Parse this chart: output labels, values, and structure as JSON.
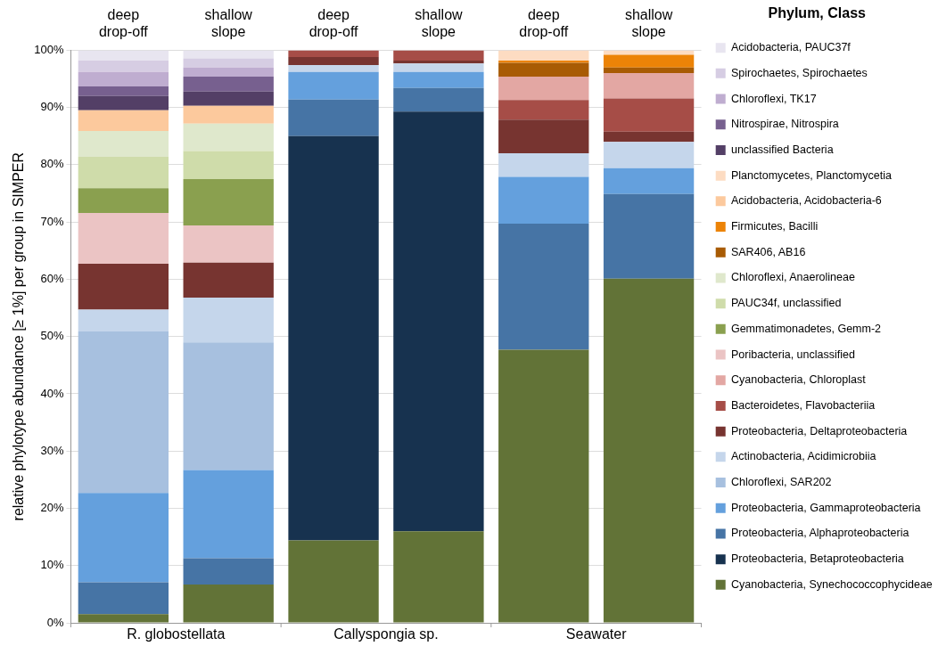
{
  "chart_data": {
    "type": "bar",
    "stacked": true,
    "ylabel": "relative phylotype abundance [≥ 1%] per group in SIMPER",
    "legend_title": "Phylum, Class",
    "legend": "right",
    "grid": "y",
    "categories": [
      "deep drop-off",
      "shallow slope",
      "deep drop-off",
      "shallow slope",
      "deep drop-off",
      "shallow slope"
    ],
    "annotations": [
      "R. globostellata",
      "Callyspongia sp.",
      "Seawater"
    ],
    "ylim": [
      0,
      100
    ],
    "yticks": [
      {
        "value": 0,
        "label": "0%"
      },
      {
        "value": 10,
        "label": "10%"
      },
      {
        "value": 20,
        "label": "20%"
      },
      {
        "value": 30,
        "label": "30%"
      },
      {
        "value": 40,
        "label": "40%"
      },
      {
        "value": 50,
        "label": "50%"
      },
      {
        "value": 60,
        "label": "60%"
      },
      {
        "value": 70,
        "label": "70%"
      },
      {
        "value": 80,
        "label": "80%"
      },
      {
        "value": 90,
        "label": "90%"
      },
      {
        "value": 100,
        "label": "100%"
      }
    ],
    "series": [
      {
        "name": "Cyanobacteria, Synechococcophycideae",
        "color": "#627337",
        "values": [
          1.5,
          6.7,
          14.4,
          16.0,
          47.7,
          60.1
        ]
      },
      {
        "name": "Proteobacteria, Betaproteobacteria",
        "color": "#17324f",
        "values": [
          0,
          0,
          70.6,
          73.3,
          0,
          0
        ]
      },
      {
        "name": "Proteobacteria, Alphaproteobacteria",
        "color": "#4674a5",
        "values": [
          5.6,
          4.6,
          6.4,
          4.1,
          22.0,
          14.8
        ]
      },
      {
        "name": "Proteobacteria, Gammaproteobacteria",
        "color": "#64a0dd",
        "values": [
          15.6,
          15.4,
          4.8,
          2.8,
          8.2,
          4.5
        ]
      },
      {
        "name": "Chloroflexi, SAR202",
        "color": "#a7c0df",
        "values": [
          28.2,
          22.3,
          0,
          0,
          0,
          0
        ]
      },
      {
        "name": "Actinobacteria, Acidimicrobiia",
        "color": "#c5d6eb",
        "values": [
          3.8,
          7.8,
          1.2,
          1.5,
          4.1,
          4.6
        ]
      },
      {
        "name": "Proteobacteria, Deltaproteobacteria",
        "color": "#773430",
        "values": [
          8.0,
          6.1,
          1.4,
          0.5,
          5.9,
          1.8
        ]
      },
      {
        "name": "Bacteroidetes, Flavobacteriia",
        "color": "#a64d47",
        "values": [
          0,
          0,
          1.2,
          1.8,
          3.4,
          5.8
        ]
      },
      {
        "name": "Cyanobacteria, Chloroplast",
        "color": "#e3a7a3",
        "values": [
          0,
          0,
          0,
          0,
          4.1,
          4.4
        ]
      },
      {
        "name": "Poribacteria, unclassified",
        "color": "#ebc4c4",
        "values": [
          8.9,
          6.5,
          0,
          0,
          0,
          0
        ]
      },
      {
        "name": "Gemmatimonadetes, Gemm-2",
        "color": "#8aa04f",
        "values": [
          4.3,
          8.1,
          0,
          0,
          0,
          0
        ]
      },
      {
        "name": "PAUC34f, unclassified",
        "color": "#cfdcaa",
        "values": [
          5.5,
          4.9,
          0,
          0,
          0,
          0
        ]
      },
      {
        "name": "Chloroflexi, Anaerolineae",
        "color": "#dfe8cc",
        "values": [
          4.5,
          4.8,
          0,
          0,
          0,
          0
        ]
      },
      {
        "name": "SAR406, AB16",
        "color": "#a85b04",
        "values": [
          0,
          0,
          0,
          0,
          2.4,
          1.0
        ]
      },
      {
        "name": "Firmicutes, Bacilli",
        "color": "#ec8307",
        "values": [
          0,
          0,
          0,
          0,
          0.4,
          2.2
        ]
      },
      {
        "name": "Acidobacteria, Acidobacteria-6",
        "color": "#fcc99d",
        "values": [
          3.6,
          3.1,
          0,
          0,
          0,
          0
        ]
      },
      {
        "name": "Planctomycetes, Planctomycetia",
        "color": "#fddcc2",
        "values": [
          0,
          0,
          0,
          0,
          1.8,
          0.8
        ]
      },
      {
        "name": "unclassified Bacteria",
        "color": "#533f66",
        "values": [
          2.5,
          2.5,
          0,
          0,
          0,
          0
        ]
      },
      {
        "name": "Nitrospirae, Nitrospira",
        "color": "#77608f",
        "values": [
          1.7,
          2.6,
          0,
          0,
          0,
          0
        ]
      },
      {
        "name": "Chloroflexi, TK17",
        "color": "#bfadd0",
        "values": [
          2.5,
          1.6,
          0,
          0,
          0,
          0
        ]
      },
      {
        "name": "Spirochaetes, Spirochaetes",
        "color": "#d6cde3",
        "values": [
          2.0,
          1.6,
          0,
          0,
          0,
          0
        ]
      },
      {
        "name": "Acidobacteria, PAUC37f",
        "color": "#e8e5f0",
        "values": [
          1.8,
          1.4,
          0,
          0,
          0,
          0
        ]
      }
    ]
  }
}
